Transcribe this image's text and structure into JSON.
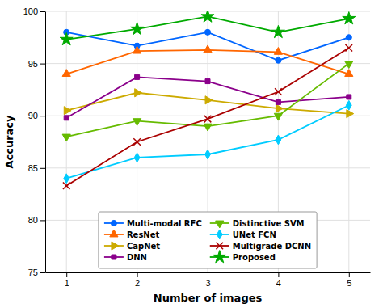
{
  "chart_data": {
    "type": "line",
    "x": [
      1,
      2,
      3,
      4,
      5
    ],
    "series": [
      {
        "name": "Multi-modal RFC",
        "values": [
          98.0,
          96.7,
          98.0,
          95.3,
          97.5
        ],
        "color": "#0066FF",
        "marker": "circle"
      },
      {
        "name": "ResNet",
        "values": [
          94.0,
          96.2,
          96.3,
          96.1,
          94.0
        ],
        "color": "#FF6600",
        "marker": "triangle-up"
      },
      {
        "name": "CapNet",
        "values": [
          90.5,
          92.2,
          91.5,
          90.7,
          90.2
        ],
        "color": "#CCAA00",
        "marker": "triangle-right"
      },
      {
        "name": "DNN",
        "values": [
          89.8,
          93.7,
          93.3,
          91.3,
          91.8
        ],
        "color": "#8B008B",
        "marker": "square"
      },
      {
        "name": "Distinctive SVM",
        "values": [
          88.0,
          89.5,
          89.0,
          90.0,
          95.0
        ],
        "color": "#66BB00",
        "marker": "triangle-down"
      },
      {
        "name": "UNet FCN",
        "values": [
          84.0,
          86.0,
          86.3,
          87.7,
          91.0
        ],
        "color": "#00CCFF",
        "marker": "diamond"
      },
      {
        "name": "Multigrade DCNN",
        "values": [
          83.3,
          87.5,
          89.7,
          92.3,
          96.5
        ],
        "color": "#AA0000",
        "marker": "x"
      },
      {
        "name": "Proposed",
        "values": [
          97.3,
          98.3,
          99.5,
          98.0,
          99.3
        ],
        "color": "#00AA00",
        "marker": "star"
      }
    ],
    "xlabel": "Number of images",
    "ylabel": "Accuracy",
    "xlim": [
      0.7,
      5.3
    ],
    "ylim": [
      75,
      100
    ],
    "xticks": [
      1,
      2,
      3,
      4,
      5
    ],
    "yticks": [
      75,
      80,
      85,
      90,
      95,
      100
    ],
    "grid": true,
    "legend": "bottom"
  }
}
